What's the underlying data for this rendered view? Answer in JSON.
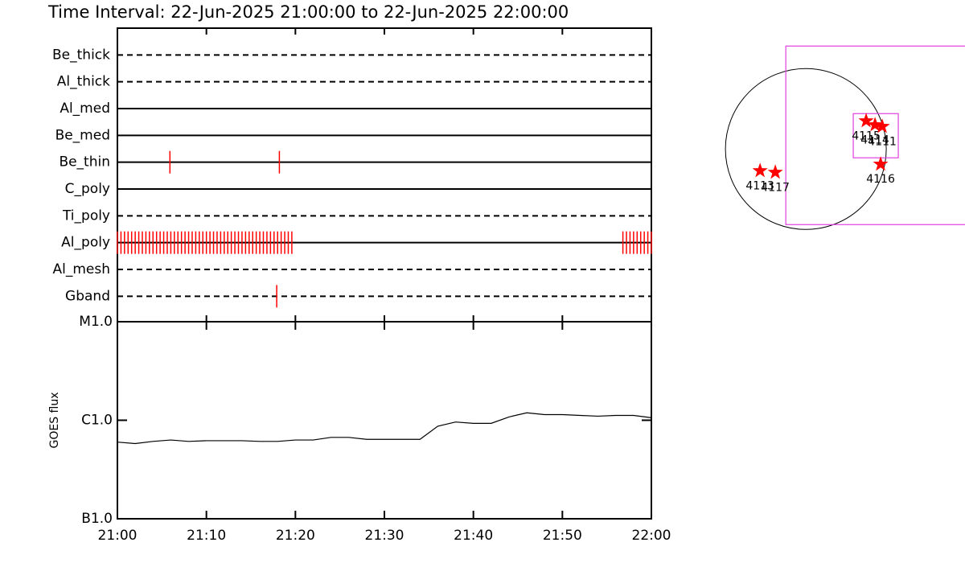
{
  "title": "Time Interval: 22-Jun-2025 21:00:00 to 22-Jun-2025 22:00:00",
  "chart_data": [
    {
      "type": "timeline",
      "categories": [
        "Be_thick",
        "Al_thick",
        "Al_med",
        "Be_med",
        "Be_thin",
        "C_poly",
        "Ti_poly",
        "Al_poly",
        "Al_mesh",
        "Gband"
      ],
      "line_styles": [
        "dashed",
        "dashed",
        "solid",
        "solid",
        "solid",
        "solid",
        "dashed",
        "solid",
        "dashed",
        "dashed"
      ],
      "event_color": "#ff0000",
      "events": [
        [],
        [],
        [],
        [],
        [
          5.9,
          18.2
        ],
        [],
        [],
        [
          0,
          0.4,
          0.8,
          1.2,
          1.6,
          2,
          2.4,
          2.8,
          3.2,
          3.6,
          4,
          4.4,
          4.8,
          5.2,
          5.6,
          6,
          6.4,
          6.8,
          7.2,
          7.6,
          8,
          8.4,
          8.8,
          9.2,
          9.6,
          10,
          10.4,
          10.8,
          11.2,
          11.6,
          12,
          12.4,
          12.8,
          13.2,
          13.6,
          14,
          14.4,
          14.8,
          15.2,
          15.6,
          16,
          16.4,
          16.8,
          17.2,
          17.6,
          18,
          18.4,
          18.8,
          19.2,
          19.6,
          56.8,
          57.2,
          57.6,
          58,
          58.4,
          58.8,
          59.2,
          59.6,
          60
        ],
        [],
        [
          17.9
        ]
      ],
      "xlim": [
        0,
        60
      ],
      "xticks": [
        0,
        10,
        20,
        30,
        40,
        50,
        60
      ]
    },
    {
      "type": "line",
      "ylabel": "GOES flux",
      "color": "#000000",
      "log": true,
      "x": [
        0,
        2,
        4,
        6,
        8,
        10,
        12,
        14,
        16,
        18,
        20,
        22,
        24,
        26,
        28,
        30,
        32,
        34,
        36,
        38,
        40,
        42,
        44,
        46,
        48,
        50,
        52,
        54,
        56,
        58,
        60
      ],
      "values": [
        6e-07,
        5.8e-07,
        6.1e-07,
        6.3e-07,
        6.1e-07,
        6.2e-07,
        6.2e-07,
        6.2e-07,
        6.1e-07,
        6.1e-07,
        6.3e-07,
        6.3e-07,
        6.7e-07,
        6.7e-07,
        6.4e-07,
        6.4e-07,
        6.4e-07,
        6.4e-07,
        8.7e-07,
        9.6e-07,
        9.3e-07,
        9.3e-07,
        1.08e-06,
        1.19e-06,
        1.14e-06,
        1.14e-06,
        1.12e-06,
        1.1e-06,
        1.12e-06,
        1.12e-06,
        1.06e-06
      ],
      "ylim": [
        1e-07,
        1e-05
      ],
      "yticks": [
        {
          "value": 1e-07,
          "label": "B1.0"
        },
        {
          "value": 1e-06,
          "label": "C1.0"
        },
        {
          "value": 1e-05,
          "label": "M1.0"
        }
      ],
      "xlim": [
        0,
        60
      ],
      "xticks": [
        {
          "value": 0,
          "label": "21:00"
        },
        {
          "value": 10,
          "label": "21:10"
        },
        {
          "value": 20,
          "label": "21:20"
        },
        {
          "value": 30,
          "label": "21:30"
        },
        {
          "value": 40,
          "label": "21:40"
        },
        {
          "value": 50,
          "label": "21:50"
        },
        {
          "value": 60,
          "label": "22:00"
        }
      ]
    },
    {
      "type": "map",
      "xlim": [
        -1160,
        1880
      ],
      "ylim": [
        -1090,
        1380
      ],
      "radius": 950,
      "box_color": "#e040e0",
      "star_color": "#ff0000",
      "boxes": [
        {
          "xlim": [
            -237,
            2000
          ],
          "ylim": [
            -893,
            1216
          ]
        },
        {
          "xlim": [
            560,
            1092
          ],
          "ylim": [
            -104,
            418
          ]
        }
      ],
      "regions": [
        {
          "label": "4115",
          "x": 712,
          "y": 332
        },
        {
          "label": "4114",
          "x": 817,
          "y": 285
        },
        {
          "label": "4111",
          "x": 902,
          "y": 266
        },
        {
          "label": "4116",
          "x": 883,
          "y": -180
        },
        {
          "label": "4113",
          "x": -541,
          "y": -257
        },
        {
          "label": "4117",
          "x": -361,
          "y": -276
        }
      ]
    }
  ]
}
